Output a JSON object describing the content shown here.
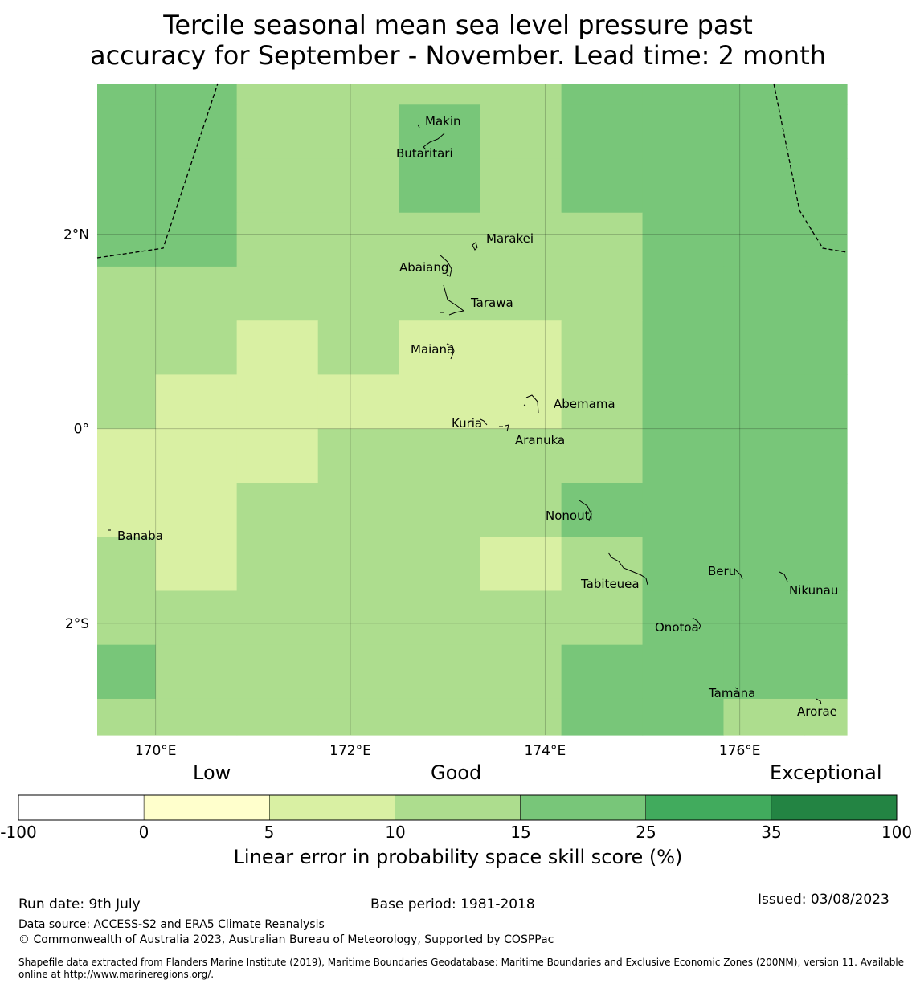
{
  "title": {
    "line1": "Tercile seasonal mean sea level pressure past",
    "line2": "accuracy for September - November. Lead time: 2 month"
  },
  "map": {
    "lon_range": [
      169.4,
      177.1
    ],
    "lat_range": [
      -3.15,
      3.55
    ],
    "lat_ticks": [
      {
        "value": 2,
        "label": "2°N"
      },
      {
        "value": 0,
        "label": "0°"
      },
      {
        "value": -2,
        "label": "2°S"
      }
    ],
    "lon_ticks": [
      {
        "value": 170,
        "label": "170°E"
      },
      {
        "value": 172,
        "label": "172°E"
      },
      {
        "value": 174,
        "label": "174°E"
      },
      {
        "value": 176,
        "label": "176°E"
      }
    ],
    "grid": true,
    "grid_lon_edges": [
      169.4,
      170.0,
      170.833,
      171.667,
      172.5,
      173.333,
      174.167,
      175.0,
      175.833,
      176.667,
      177.1
    ],
    "grid_lat_edges": [
      3.55,
      3.333,
      2.778,
      2.222,
      1.667,
      1.111,
      0.556,
      0.0,
      -0.556,
      -1.111,
      -1.667,
      -2.222,
      -2.778,
      -3.15
    ],
    "skill_class_grid": [
      [
        4,
        4,
        3,
        3,
        3,
        3,
        4,
        4,
        4,
        4
      ],
      [
        4,
        4,
        3,
        3,
        4,
        3,
        4,
        4,
        4,
        4
      ],
      [
        4,
        4,
        3,
        3,
        4,
        3,
        4,
        4,
        4,
        4
      ],
      [
        4,
        4,
        3,
        3,
        3,
        3,
        3,
        4,
        4,
        4
      ],
      [
        3,
        3,
        3,
        3,
        3,
        3,
        3,
        4,
        4,
        4
      ],
      [
        3,
        3,
        2,
        3,
        2,
        2,
        3,
        4,
        4,
        4
      ],
      [
        3,
        2,
        2,
        2,
        2,
        2,
        3,
        4,
        4,
        4
      ],
      [
        2,
        2,
        2,
        3,
        3,
        3,
        3,
        4,
        4,
        4
      ],
      [
        2,
        2,
        3,
        3,
        3,
        3,
        4,
        4,
        4,
        4
      ],
      [
        3,
        2,
        3,
        3,
        3,
        2,
        3,
        4,
        4,
        4
      ],
      [
        3,
        3,
        3,
        3,
        3,
        3,
        3,
        4,
        4,
        4
      ],
      [
        4,
        3,
        3,
        3,
        3,
        3,
        4,
        4,
        4,
        4
      ],
      [
        3,
        3,
        3,
        3,
        3,
        3,
        4,
        4,
        3,
        3
      ]
    ],
    "islands": [
      {
        "name": "Makin"
      },
      {
        "name": "Butaritari"
      },
      {
        "name": "Marakei"
      },
      {
        "name": "Abaiang"
      },
      {
        "name": "Tarawa"
      },
      {
        "name": "Maiana"
      },
      {
        "name": "Abemama"
      },
      {
        "name": "Kuria"
      },
      {
        "name": "Aranuka"
      },
      {
        "name": "Nonouti"
      },
      {
        "name": "Banaba"
      },
      {
        "name": "Beru"
      },
      {
        "name": "Nikunau"
      },
      {
        "name": "Tabiteuea"
      },
      {
        "name": "Onotoa"
      },
      {
        "name": "Tamana"
      },
      {
        "name": "Arorae"
      }
    ]
  },
  "colorbar": {
    "categories": [
      "Low",
      "Good",
      "Exceptional"
    ],
    "classes": [
      {
        "range": [
          -100,
          0
        ],
        "color": "#ffffff"
      },
      {
        "range": [
          0,
          5
        ],
        "color": "#ffffcc"
      },
      {
        "range": [
          5,
          10
        ],
        "color": "#d9f0a3"
      },
      {
        "range": [
          10,
          15
        ],
        "color": "#addd8e"
      },
      {
        "range": [
          15,
          25
        ],
        "color": "#78c679"
      },
      {
        "range": [
          25,
          35
        ],
        "color": "#41ab5d"
      },
      {
        "range": [
          35,
          100
        ],
        "color": "#238443"
      }
    ],
    "tick_labels": [
      "-100",
      "0",
      "5",
      "10",
      "15",
      "25",
      "35",
      "100"
    ],
    "title": "Linear error in probability space skill score (%)"
  },
  "footer": {
    "run_date": "Run date: 9th July",
    "base_period": "Base period: 1981-2018",
    "issued": "Issued: 03/08/2023",
    "data_source": "Data source: ACCESS-S2 and ERA5 Climate Reanalysis",
    "copyright": "© Commonwealth of Australia 2023, Australian Bureau of Meteorology, Supported by COSPPac",
    "shapefile": "Shapefile data extracted from Flanders Marine Institute (2019), Maritime Boundaries Geodatabase: Maritime Boundaries and Exclusive Economic Zones (200NM), version 11. Available online at http://www.marineregions.org/."
  }
}
